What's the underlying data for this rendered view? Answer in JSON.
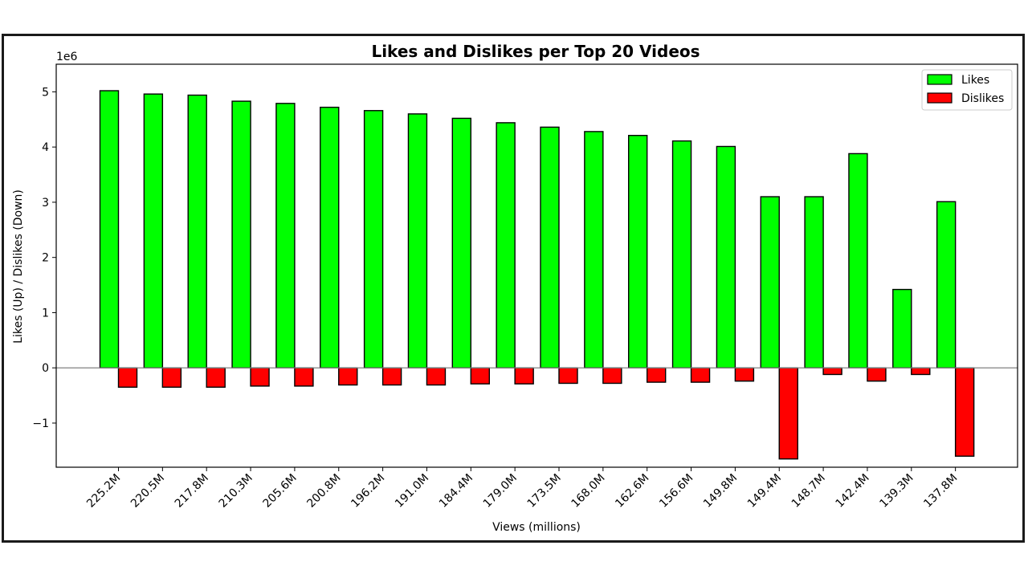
{
  "chart_data": {
    "type": "bar",
    "title": "Likes and Dislikes per Top 20 Videos",
    "xlabel": "Views (millions)",
    "ylabel": "Likes (Up) / Dislikes (Down)",
    "y_scale_label": "1e6",
    "ylim": [
      -1.8,
      5.5
    ],
    "yticks": [
      -1,
      0,
      1,
      2,
      3,
      4,
      5
    ],
    "ytick_labels": [
      "−1",
      "0",
      "1",
      "2",
      "3",
      "4",
      "5"
    ],
    "legend_position": "top-right",
    "grid": false,
    "categories": [
      "225.2M",
      "220.5M",
      "217.8M",
      "210.3M",
      "205.6M",
      "200.8M",
      "196.2M",
      "191.0M",
      "184.4M",
      "179.0M",
      "173.5M",
      "168.0M",
      "162.6M",
      "156.6M",
      "149.8M",
      "149.4M",
      "148.7M",
      "142.4M",
      "139.3M",
      "137.8M"
    ],
    "series": [
      {
        "name": "Likes",
        "color": "#00ff00",
        "values": [
          5.02,
          4.96,
          4.94,
          4.83,
          4.79,
          4.72,
          4.66,
          4.6,
          4.52,
          4.44,
          4.36,
          4.28,
          4.21,
          4.11,
          4.01,
          3.1,
          3.1,
          3.88,
          1.42,
          3.01
        ]
      },
      {
        "name": "Dislikes",
        "color": "#ff0000",
        "values": [
          -0.35,
          -0.35,
          -0.35,
          -0.33,
          -0.33,
          -0.31,
          -0.31,
          -0.31,
          -0.29,
          -0.29,
          -0.28,
          -0.28,
          -0.26,
          -0.26,
          -0.24,
          -1.65,
          -0.12,
          -0.24,
          -0.12,
          -1.6
        ]
      }
    ]
  }
}
